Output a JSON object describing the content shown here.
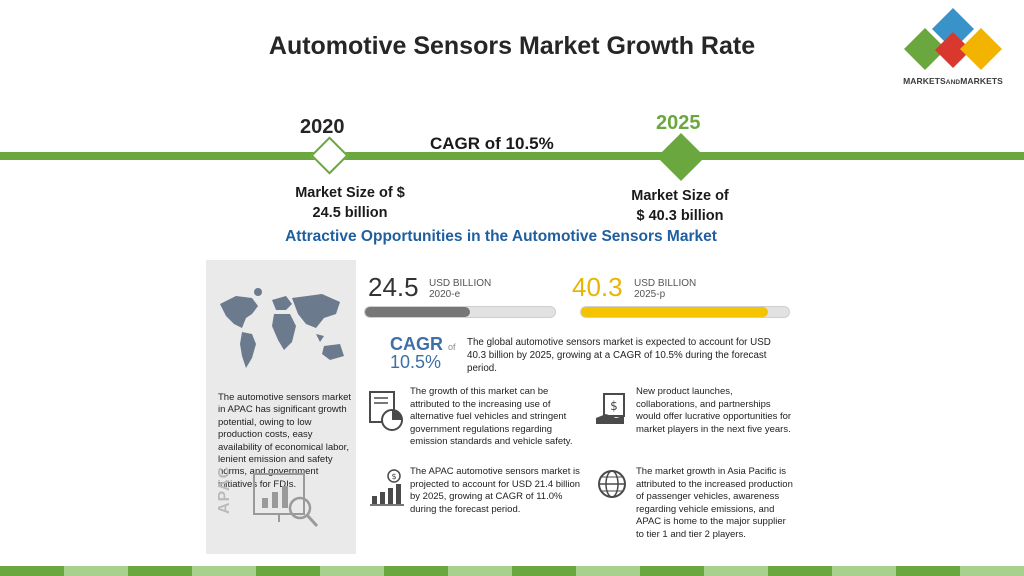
{
  "title": "Automotive Sensors Market Growth Rate",
  "logo": {
    "text_main": "MARKETS",
    "text_and": "AND",
    "text_end": "MARKETS",
    "colors": [
      "#3a93c8",
      "#d9382f",
      "#6aa83f",
      "#f2b400"
    ]
  },
  "timeline": {
    "year_start": "2020",
    "year_end": "2025",
    "cagr": "CAGR of 10.5%",
    "size_start_line1": "Market Size of $",
    "size_start_line2": "24.5 billion",
    "size_end_line1": "Market Size of",
    "size_end_line2": "$ 40.3 billion",
    "accent_color": "#6aa83f"
  },
  "infographic": {
    "title": "Attractive Opportunities in the Automotive Sensors Market",
    "left_text": "The automotive sensors market in APAC has significant growth potential, owing to low production costs, easy availability of economical labor, lenient emission and safety norms, and government initiatives for FDIs.",
    "apac_label": "APAC",
    "value_left": "24.5",
    "unit_left_1": "USD BILLION",
    "unit_left_2": "2020-e",
    "value_right": "40.3",
    "unit_right_1": "USD BILLION",
    "unit_right_2": "2025-p",
    "bar_left_fill": 0.55,
    "bar_right_fill": 0.9,
    "cagr_label": "CAGR",
    "cagr_of": "of",
    "cagr_value": "10.5%",
    "cagr_text": "The global automotive sensors market is expected to account for USD 40.3 billion by 2025, growing at a CAGR of 10.5% during the forecast period.",
    "block1": "The growth of this market can be attributed to the increasing use of alternative fuel vehicles and stringent government regulations regarding emission standards and vehicle safety.",
    "block2": "New product launches, collaborations, and partnerships would offer lucrative opportunities for market players in the next five years.",
    "block3": "The APAC automotive sensors market is projected to account for USD 21.4 billion by 2025, growing at CAGR of 11.0% during the forecast period.",
    "block4": "The market growth in Asia Pacific is attributed to the increased production of passenger vehicles, awareness regarding vehicle emissions, and APAC is home to the major supplier to tier 1 and tier 2 players."
  },
  "bottom_bar_colors": [
    "#6aa83f",
    "#a9d18e",
    "#6aa83f",
    "#a9d18e",
    "#6aa83f",
    "#a9d18e",
    "#6aa83f",
    "#a9d18e",
    "#6aa83f",
    "#a9d18e",
    "#6aa83f",
    "#a9d18e",
    "#6aa83f",
    "#a9d18e",
    "#6aa83f",
    "#a9d18e"
  ]
}
